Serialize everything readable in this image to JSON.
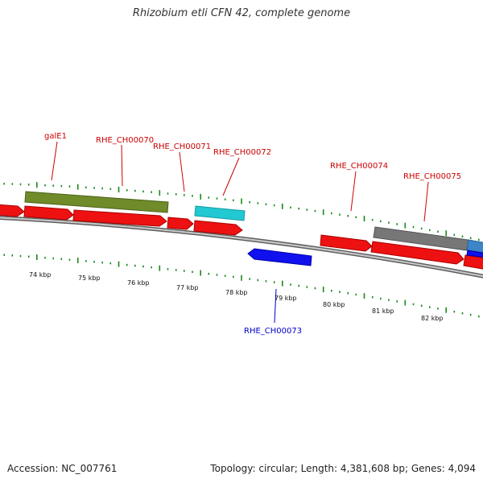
{
  "title": "Rhizobium etli CFN 42, complete genome",
  "footer": {
    "accession": "Accession: NC_007761",
    "summary": "Topology: circular; Length: 4,381,608 bp; Genes: 4,094"
  },
  "colors": {
    "label_red": "#cc0000",
    "label_blue": "#0000cc",
    "tick_green": "#1a8a1a",
    "backbone": "#8a8a8a",
    "cds_red": "#ee1111",
    "gene_olive": "#6f8b2a",
    "gene_cyan": "#22c8d2",
    "gene_gray": "#777777",
    "gene_blue": "#1111ee",
    "gene_lightblue": "#3a86c8"
  },
  "scale_labels": [
    "74 kbp",
    "75 kbp",
    "76 kbp",
    "77 kbp",
    "78 kbp",
    "79 kbp",
    "80 kbp",
    "81 kbp",
    "82 kbp"
  ],
  "gene_labels": [
    "galE1",
    "RHE_CH00070",
    "RHE_CH00071",
    "RHE_CH00072",
    "RHE_CH00073",
    "RHE_CH00074",
    "RHE_CH00075"
  ]
}
